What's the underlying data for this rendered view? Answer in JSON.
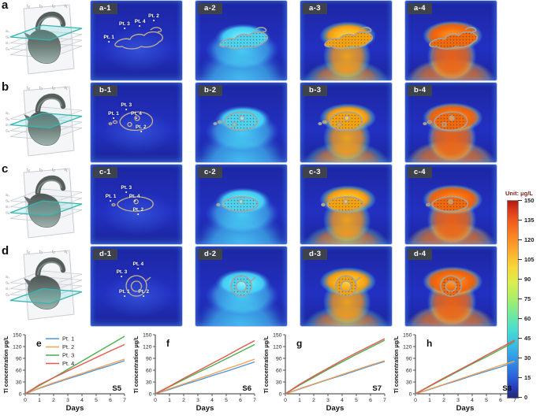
{
  "figure_rows": [
    {
      "letter": "a",
      "slice_index": 0,
      "panel_labels": [
        "a-1",
        "a-2",
        "a-3",
        "a-4"
      ],
      "point_labels": [
        "Pt. 1",
        "Pt. 3",
        "Pt. 4",
        "Pt. 2"
      ]
    },
    {
      "letter": "b",
      "slice_index": 1,
      "panel_labels": [
        "b-1",
        "b-2",
        "b-3",
        "b-4"
      ],
      "point_labels": [
        "Pt. 1",
        "Pt. 3",
        "Pt. 4",
        "Pt. 2"
      ]
    },
    {
      "letter": "c",
      "slice_index": 2,
      "panel_labels": [
        "c-1",
        "c-2",
        "c-3",
        "c-4"
      ],
      "point_labels": [
        "Pt. 1",
        "Pt. 3",
        "Pt. 4",
        "Pt. 2"
      ]
    },
    {
      "letter": "d",
      "slice_index": 3,
      "panel_labels": [
        "d-1",
        "d-2",
        "d-3",
        "d-4"
      ],
      "point_labels": [
        "Pt. 3",
        "Pt. 4",
        "Pt. 1",
        "Pt. 2"
      ]
    }
  ],
  "model_axis": {
    "top_labels": [
      "t₄",
      "t₃",
      "t₂",
      "t₁"
    ],
    "side_labels": [
      "S₅",
      "S₆",
      "S₇",
      "S₈"
    ]
  },
  "heatmap_palette": {
    "background_blue": "#2130c0",
    "t2_cyan": "#49d8f6",
    "t3_orange": "#f9a80e",
    "t4_deep_orange": "#f2680c",
    "deposit_outline": "#c9b489",
    "cross_section_outline": "#a3a3a3"
  },
  "colorbar": {
    "title": "Unit: μg/L",
    "tick_labels": [
      "150",
      "135",
      "120",
      "105",
      "90",
      "75",
      "60",
      "45",
      "30",
      "15",
      "0"
    ],
    "range": [
      0,
      150
    ]
  },
  "chart_data": [
    {
      "type": "line",
      "panel_letter": "e",
      "tag": "S5",
      "xlabel": "Days",
      "ylabel": "Tl concentration μg/L",
      "x": [
        0,
        1,
        2,
        3,
        4,
        5,
        6,
        7
      ],
      "xlim": [
        0,
        7
      ],
      "ylim": [
        0,
        150
      ],
      "yticks": [
        0,
        30,
        60,
        90,
        120,
        150
      ],
      "legend": true,
      "legend_position": "upper-left",
      "series": [
        {
          "name": "Pt. 1",
          "color": "#4C96D7",
          "values": [
            0,
            14,
            26,
            38,
            49,
            61,
            72,
            84
          ]
        },
        {
          "name": "Pt. 2",
          "color": "#F5A054",
          "values": [
            0,
            15,
            28,
            40,
            52,
            64,
            76,
            88
          ]
        },
        {
          "name": "Pt. 3",
          "color": "#4CAF50",
          "values": [
            0,
            21,
            41,
            62,
            83,
            104,
            125,
            146
          ]
        },
        {
          "name": "Pt. 4",
          "color": "#E4574C",
          "values": [
            0,
            23,
            41,
            58,
            75,
            92,
            109,
            125
          ]
        }
      ]
    },
    {
      "type": "line",
      "panel_letter": "f",
      "tag": "S6",
      "xlabel": "Days",
      "ylabel": "Tl concentration μg/L",
      "x": [
        0,
        1,
        2,
        3,
        4,
        5,
        6,
        7
      ],
      "xlim": [
        0,
        7
      ],
      "ylim": [
        0,
        150
      ],
      "yticks": [
        0,
        30,
        60,
        90,
        120,
        150
      ],
      "legend": false,
      "series": [
        {
          "name": "Pt. 1",
          "color": "#4C96D7",
          "values": [
            0,
            11,
            23,
            34,
            46,
            57,
            69,
            81
          ]
        },
        {
          "name": "Pt. 2",
          "color": "#F5A054",
          "values": [
            0,
            13,
            25,
            38,
            50,
            63,
            75,
            88
          ]
        },
        {
          "name": "Pt. 3",
          "color": "#4CAF50",
          "values": [
            0,
            18,
            36,
            54,
            71,
            89,
            107,
            125
          ]
        },
        {
          "name": "Pt. 4",
          "color": "#E4574C",
          "values": [
            0,
            19,
            39,
            58,
            77,
            96,
            116,
            135
          ]
        }
      ]
    },
    {
      "type": "line",
      "panel_letter": "g",
      "tag": "S7",
      "xlabel": "Days",
      "ylabel": "Tl concentration μg/L",
      "x": [
        0,
        1,
        2,
        3,
        4,
        5,
        6,
        7
      ],
      "xlim": [
        0,
        7
      ],
      "ylim": [
        0,
        150
      ],
      "yticks": [
        0,
        30,
        60,
        90,
        120,
        150
      ],
      "legend": false,
      "series": [
        {
          "name": "Pt. 1",
          "color": "#4C96D7",
          "values": [
            0,
            12,
            24,
            36,
            47,
            59,
            71,
            82
          ]
        },
        {
          "name": "Pt. 2",
          "color": "#F5A054",
          "values": [
            0,
            13,
            25,
            37,
            49,
            61,
            73,
            84
          ]
        },
        {
          "name": "Pt. 3",
          "color": "#4CAF50",
          "values": [
            0,
            22,
            42,
            62,
            81,
            100,
            118,
            136
          ]
        },
        {
          "name": "Pt. 4",
          "color": "#E4574C",
          "values": [
            0,
            24,
            45,
            65,
            85,
            104,
            122,
            140
          ]
        }
      ]
    },
    {
      "type": "line",
      "panel_letter": "h",
      "tag": "S8",
      "xlabel": "Days",
      "ylabel": "Tl concentration μg/L",
      "x": [
        0,
        1,
        2,
        3,
        4,
        5,
        6,
        7
      ],
      "xlim": [
        0,
        7
      ],
      "ylim": [
        0,
        150
      ],
      "yticks": [
        0,
        30,
        60,
        90,
        120,
        150
      ],
      "legend": false,
      "series": [
        {
          "name": "Pt. 1",
          "color": "#4C96D7",
          "values": [
            0,
            11,
            23,
            34,
            46,
            57,
            68,
            80
          ]
        },
        {
          "name": "Pt. 2",
          "color": "#F5A054",
          "values": [
            0,
            12,
            24,
            36,
            48,
            60,
            72,
            83
          ]
        },
        {
          "name": "Pt. 3",
          "color": "#4CAF50",
          "values": [
            0,
            19,
            38,
            57,
            76,
            94,
            113,
            132
          ]
        },
        {
          "name": "Pt. 4",
          "color": "#E4574C",
          "values": [
            0,
            20,
            40,
            59,
            78,
            98,
            117,
            136
          ]
        }
      ]
    }
  ]
}
